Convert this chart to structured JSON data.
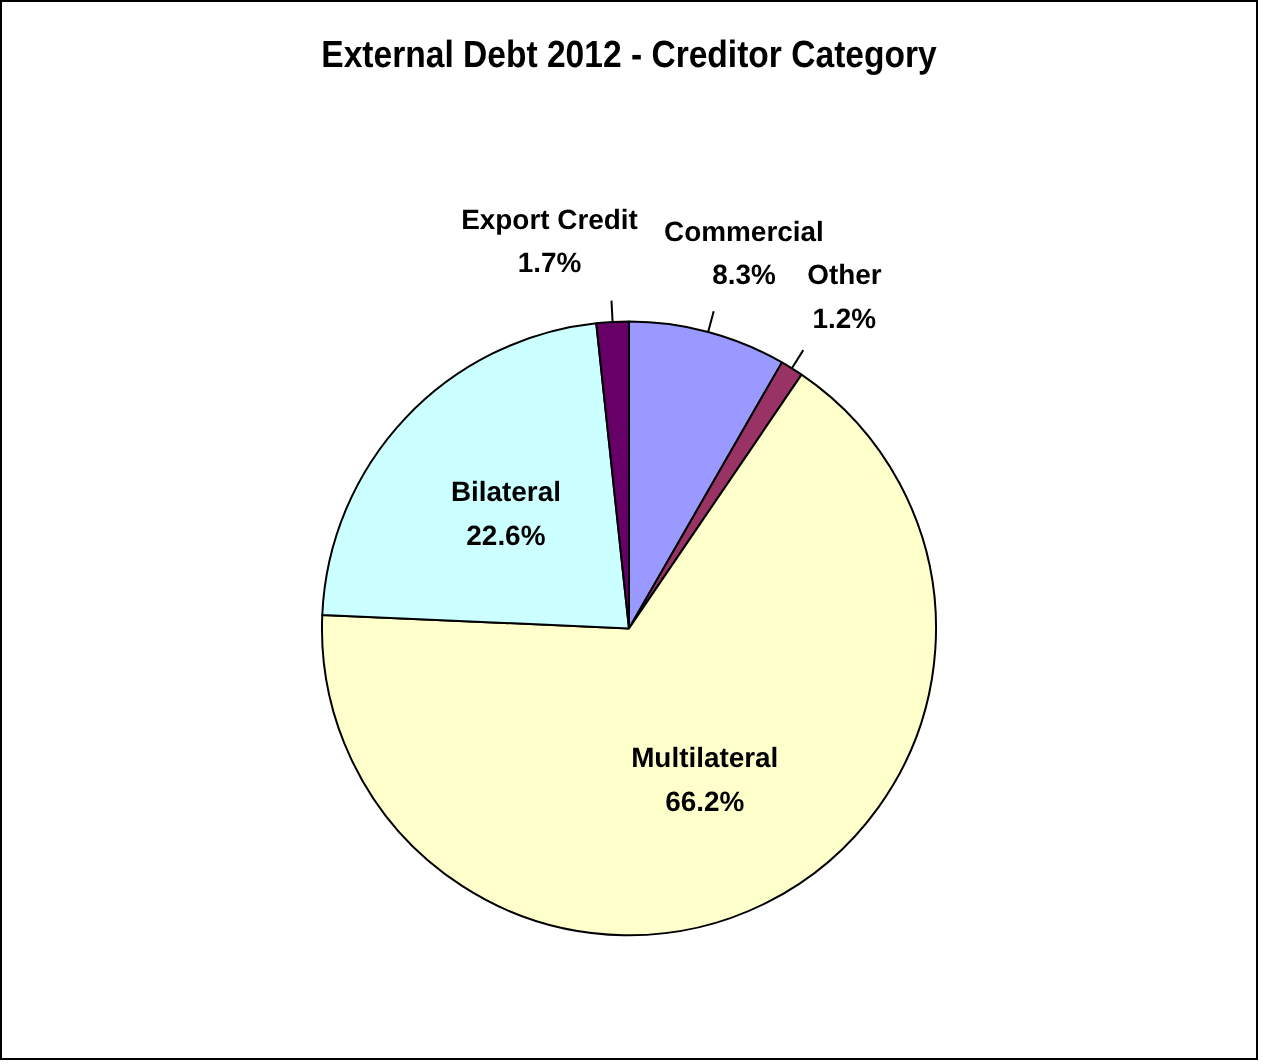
{
  "chart_data": {
    "type": "pie",
    "title": "External Debt 2012 - Creditor Category",
    "categories": [
      "Commercial",
      "Other",
      "Multilateral",
      "Bilateral",
      "Export Credit"
    ],
    "values": [
      8.3,
      1.2,
      66.2,
      22.6,
      1.7
    ],
    "value_labels": [
      "8.3%",
      "1.2%",
      "66.2%",
      "22.6%",
      "1.7%"
    ],
    "colors": [
      "#9999ff",
      "#993366",
      "#ffffcc",
      "#ccffff",
      "#660066"
    ],
    "legend": false
  }
}
